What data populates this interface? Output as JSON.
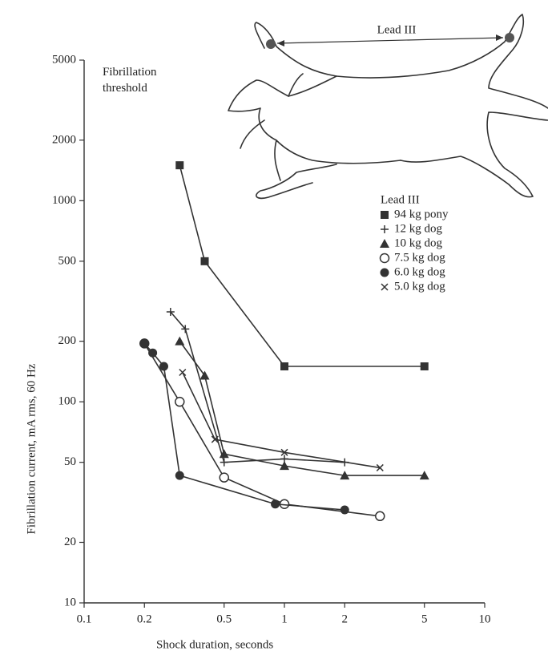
{
  "chart_data": {
    "type": "line",
    "annotation": "Fibrillation threshold",
    "diagram_label": "Lead III",
    "legend_title": "Lead III",
    "xlabel": "Shock duration, seconds",
    "ylabel": "Fibrillation current, mA rms, 60 Hz",
    "xscale": "log",
    "yscale": "log",
    "xlim": [
      0.1,
      10
    ],
    "ylim": [
      10,
      5000
    ],
    "xticks": [
      0.1,
      0.2,
      0.5,
      1,
      2,
      5,
      10
    ],
    "yticks": [
      10,
      20,
      50,
      100,
      200,
      500,
      1000,
      2000,
      5000
    ],
    "legend": "upper right",
    "series": [
      {
        "name": "94 kg pony",
        "marker": "square",
        "color": "#333333",
        "x": [
          0.3,
          0.4,
          1,
          5
        ],
        "values": [
          1500,
          500,
          150,
          150
        ]
      },
      {
        "name": "12 kg dog",
        "marker": "plus",
        "color": "#333333",
        "x": [
          0.27,
          0.32,
          0.5,
          1,
          2
        ],
        "values": [
          280,
          230,
          50,
          52,
          50
        ]
      },
      {
        "name": "10 kg dog",
        "marker": "triangle",
        "color": "#333333",
        "x": [
          0.3,
          0.4,
          0.5,
          1,
          2,
          5
        ],
        "values": [
          200,
          135,
          55,
          48,
          43,
          43
        ]
      },
      {
        "name": "7.5 kg dog",
        "marker": "open-circle",
        "color": "#333333",
        "x": [
          0.2,
          0.3,
          0.5,
          1,
          3
        ],
        "values": [
          195,
          100,
          42,
          31,
          27
        ]
      },
      {
        "name": "6.0 kg dog",
        "marker": "circle",
        "color": "#333333",
        "x": [
          0.2,
          0.22,
          0.25,
          0.3,
          0.9,
          2
        ],
        "values": [
          195,
          175,
          150,
          43,
          31,
          29
        ]
      },
      {
        "name": "5.0 kg dog",
        "marker": "cross",
        "color": "#333333",
        "x": [
          0.31,
          0.45,
          1,
          3
        ],
        "values": [
          140,
          65,
          56,
          47
        ]
      }
    ]
  }
}
